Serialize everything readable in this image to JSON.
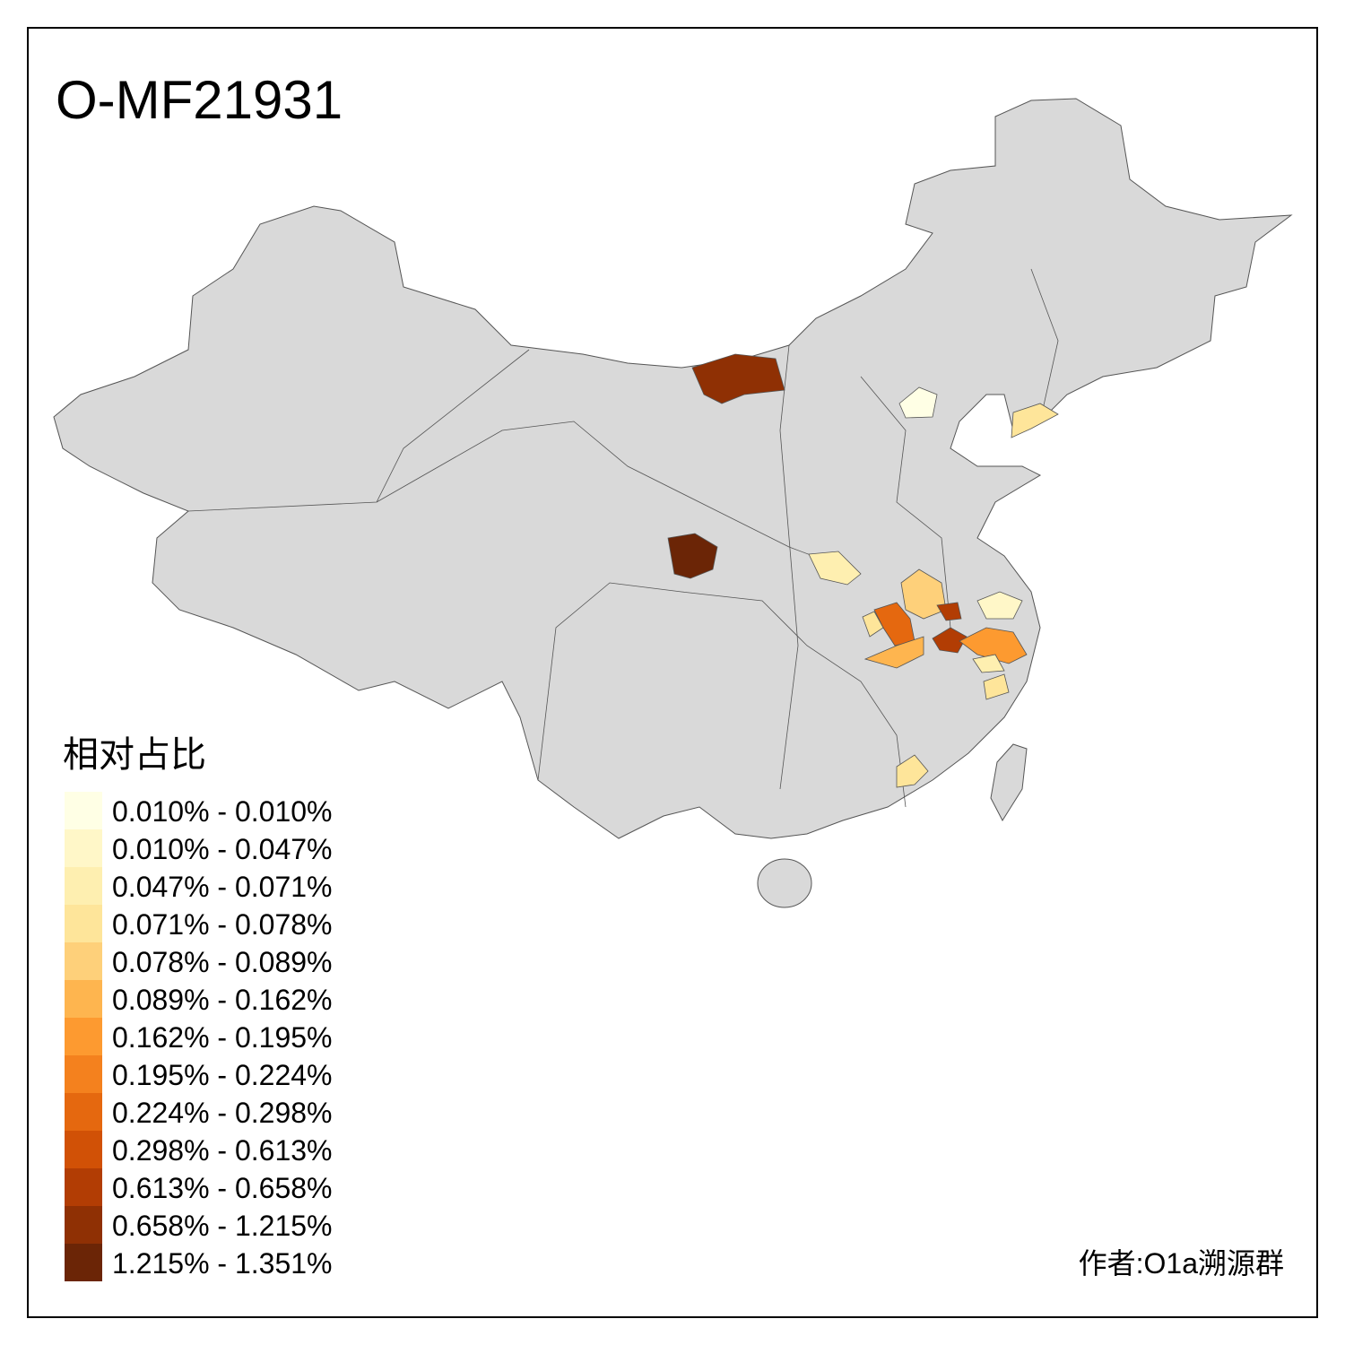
{
  "title": "O-MF21931",
  "legend": {
    "title": "相对占比",
    "items": [
      {
        "label": "0.010% - 0.010%",
        "color": "#ffffe5"
      },
      {
        "label": "0.010% - 0.047%",
        "color": "#fff7c8"
      },
      {
        "label": "0.047% - 0.071%",
        "color": "#feefb0"
      },
      {
        "label": "0.071% - 0.078%",
        "color": "#fee59a"
      },
      {
        "label": "0.078% - 0.089%",
        "color": "#fed07a"
      },
      {
        "label": "0.089% - 0.162%",
        "color": "#feb54f"
      },
      {
        "label": "0.162% - 0.195%",
        "color": "#fd9a30"
      },
      {
        "label": "0.195% - 0.224%",
        "color": "#f4811e"
      },
      {
        "label": "0.224% - 0.298%",
        "color": "#e5680f"
      },
      {
        "label": "0.298% - 0.613%",
        "color": "#d15106"
      },
      {
        "label": "0.613% - 0.658%",
        "color": "#b23d04"
      },
      {
        "label": "0.658% - 1.215%",
        "color": "#8f3004"
      },
      {
        "label": "1.215% - 1.351%",
        "color": "#6b2506"
      }
    ]
  },
  "credit": "作者:O1a溯源群"
}
